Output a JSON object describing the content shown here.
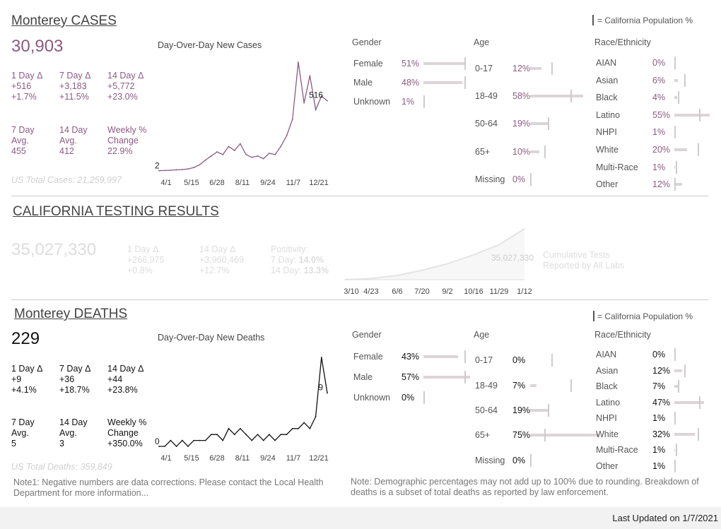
{
  "legend_text": "= California Population %",
  "cases": {
    "title": "Monterey CASES",
    "total": "30,903",
    "chart_title": "Day-Over-Day New Cases",
    "stats": [
      [
        "1 Day Δ",
        "+516",
        "+1.7%"
      ],
      [
        "7 Day Δ",
        "+3,183",
        "+11.5%"
      ],
      [
        "14 Day Δ",
        "+5,772",
        "+23.0%"
      ]
    ],
    "avgs": [
      [
        "7 Day",
        "Avg.",
        "455"
      ],
      [
        "14 Day",
        "Avg.",
        "412"
      ],
      [
        "Weekly %",
        "Change",
        "22.9%"
      ]
    ],
    "us_total": "US Total Cases: 21,259,997",
    "label_start": "2",
    "label_end": "516",
    "gender_header": "Gender",
    "age_header": "Age",
    "race_header": "Race/Ethnicity",
    "gender": [
      {
        "label": "Female",
        "pct": "51%",
        "v": 51,
        "ca": 50
      },
      {
        "label": "Male",
        "pct": "48%",
        "v": 48,
        "ca": 50
      },
      {
        "label": "Unknown",
        "pct": "1%",
        "v": 1,
        "ca": 0
      }
    ],
    "age": [
      {
        "label": "0-17",
        "pct": "12%",
        "v": 12,
        "ca": 23
      },
      {
        "label": "18-49",
        "pct": "58%",
        "v": 58,
        "ca": 44
      },
      {
        "label": "50-64",
        "pct": "19%",
        "v": 19,
        "ca": 19
      },
      {
        "label": "65+",
        "pct": "10%",
        "v": 10,
        "ca": 15
      },
      {
        "label": "Missing",
        "pct": "0%",
        "v": 0,
        "ca": 0
      }
    ],
    "race": [
      {
        "label": "AIAN",
        "pct": "0%",
        "v": 0,
        "ca": 0.5
      },
      {
        "label": "Asian",
        "pct": "6%",
        "v": 6,
        "ca": 15
      },
      {
        "label": "Black",
        "pct": "4%",
        "v": 4,
        "ca": 6
      },
      {
        "label": "Latino",
        "pct": "55%",
        "v": 55,
        "ca": 39
      },
      {
        "label": "NHPI",
        "pct": "1%",
        "v": 1,
        "ca": 0.3
      },
      {
        "label": "White",
        "pct": "20%",
        "v": 20,
        "ca": 37
      },
      {
        "label": "Multi-Race",
        "pct": "1%",
        "v": 1,
        "ca": 2
      },
      {
        "label": "Other",
        "pct": "12%",
        "v": 12,
        "ca": 0
      }
    ]
  },
  "testing": {
    "title": "CALIFORNIA TESTING RESULTS",
    "total": "35,027,330",
    "s1": [
      "1 Day Δ",
      "+266,975",
      "+0.8%"
    ],
    "s2": [
      "14 Day Δ",
      "+3,960,469",
      "+12.7%"
    ],
    "pos_title": "Positivity:",
    "pos7_label": "7 Day:",
    "pos7": "14.0%",
    "pos14_label": "14 Day:",
    "pos14": "13.3%",
    "chart_label": "35,027,330",
    "cumulative_label_1": "Cumulative Tests",
    "cumulative_label_2": "Reported by All Labs"
  },
  "deaths": {
    "title": "Monterey DEATHS",
    "total": "229",
    "chart_title": "Day-Over-Day New Deaths",
    "stats": [
      [
        "1 Day Δ",
        "+9",
        "+4.1%"
      ],
      [
        "7 Day Δ",
        "+36",
        "+18.7%"
      ],
      [
        "14 Day Δ",
        "+44",
        "+23.8%"
      ]
    ],
    "avgs": [
      [
        "7 Day",
        "Avg.",
        "5"
      ],
      [
        "14 Day",
        "Avg.",
        "3"
      ],
      [
        "Weekly %",
        "Change",
        "+350.0%"
      ]
    ],
    "us_total": "US Total Deaths: 359,849",
    "label_start": "0",
    "label_end": "9",
    "gender_header": "Gender",
    "age_header": "Age",
    "race_header": "Race/Ethnicity",
    "gender": [
      {
        "label": "Female",
        "pct": "43%",
        "v": 43,
        "ca": 50
      },
      {
        "label": "Male",
        "pct": "57%",
        "v": 57,
        "ca": 50
      },
      {
        "label": "Unknown",
        "pct": "0%",
        "v": 0,
        "ca": 0
      }
    ],
    "age": [
      {
        "label": "0-17",
        "pct": "0%",
        "v": 0,
        "ca": 23
      },
      {
        "label": "18-49",
        "pct": "7%",
        "v": 7,
        "ca": 44
      },
      {
        "label": "50-64",
        "pct": "19%",
        "v": 19,
        "ca": 19
      },
      {
        "label": "65+",
        "pct": "75%",
        "v": 75,
        "ca": 15
      },
      {
        "label": "Missing",
        "pct": "0%",
        "v": 0,
        "ca": 0
      }
    ],
    "race": [
      {
        "label": "AIAN",
        "pct": "0%",
        "v": 0,
        "ca": 0.5
      },
      {
        "label": "Asian",
        "pct": "12%",
        "v": 12,
        "ca": 15
      },
      {
        "label": "Black",
        "pct": "7%",
        "v": 7,
        "ca": 6
      },
      {
        "label": "Latino",
        "pct": "47%",
        "v": 47,
        "ca": 39
      },
      {
        "label": "NHPI",
        "pct": "1%",
        "v": 1,
        "ca": 0.3
      },
      {
        "label": "White",
        "pct": "32%",
        "v": 32,
        "ca": 37
      },
      {
        "label": "Multi-Race",
        "pct": "1%",
        "v": 1,
        "ca": 2
      },
      {
        "label": "Other",
        "pct": "1%",
        "v": 1,
        "ca": 0
      }
    ]
  },
  "note1": "Note1: Negative numbers are data corrections. Please contact the Local Health Department for more information...",
  "note2": "Note: Demographic percentages may not add up to 100% due to rounding. Breakdown of deaths is a subset of total deaths as reported by law enforcement.",
  "last_updated": "Last Updated on 1/7/2021",
  "colors": {
    "cases": "#8b5a82",
    "deaths": "#111111",
    "bar": "#dcd4d8",
    "light": "#e6e6e6"
  },
  "chart_data": [
    {
      "type": "line",
      "title": "Day-Over-Day New Cases",
      "x_ticks": [
        "4/1",
        "5/15",
        "6/28",
        "8/11",
        "9/24",
        "11/7",
        "12/21"
      ],
      "x": [
        "3/18",
        "4/1",
        "4/15",
        "5/1",
        "5/15",
        "6/1",
        "6/15",
        "6/28",
        "7/10",
        "7/20",
        "7/28",
        "8/5",
        "8/11",
        "8/20",
        "8/30",
        "9/10",
        "9/24",
        "10/5",
        "10/20",
        "11/1",
        "11/7",
        "11/20",
        "11/28",
        "12/5",
        "12/10",
        "12/15",
        "12/21",
        "12/28",
        "1/3",
        "1/7"
      ],
      "values": [
        2,
        3,
        5,
        8,
        10,
        15,
        25,
        45,
        80,
        110,
        140,
        120,
        180,
        150,
        200,
        120,
        100,
        110,
        90,
        130,
        120,
        180,
        260,
        380,
        800,
        500,
        700,
        450,
        550,
        516
      ],
      "labels": {
        "start": "2",
        "end": "516"
      }
    },
    {
      "type": "line",
      "title": "Day-Over-Day New Deaths",
      "x_ticks": [
        "4/1",
        "5/15",
        "6/28",
        "8/11",
        "9/24",
        "11/7",
        "12/21"
      ],
      "x": [
        "3/18",
        "4/1",
        "4/15",
        "5/1",
        "5/15",
        "6/1",
        "6/15",
        "6/28",
        "7/10",
        "7/20",
        "7/28",
        "8/5",
        "8/11",
        "8/20",
        "8/30",
        "9/10",
        "9/24",
        "10/5",
        "10/20",
        "11/1",
        "11/7",
        "11/20",
        "11/28",
        "12/5",
        "12/10",
        "12/15",
        "12/21",
        "12/28",
        "1/3",
        "1/7"
      ],
      "values": [
        0,
        0,
        1,
        0,
        1,
        0,
        1,
        1,
        1,
        2,
        2,
        1,
        3,
        2,
        3,
        2,
        1,
        2,
        1,
        2,
        1,
        2,
        2,
        3,
        3,
        4,
        3,
        5,
        15,
        9
      ],
      "labels": {
        "start": "0",
        "end": "9"
      }
    },
    {
      "type": "area",
      "title": "Cumulative Tests Reported by All Labs",
      "x_ticks": [
        "3/10",
        "4/23",
        "6/6",
        "7/20",
        "9/2",
        "10/16",
        "11/29",
        "1/12"
      ],
      "x": [
        "3/10",
        "4/23",
        "6/6",
        "7/20",
        "9/2",
        "10/16",
        "11/29",
        "1/7"
      ],
      "values": [
        0,
        800000,
        2800000,
        6500000,
        11000000,
        17000000,
        24000000,
        35027330
      ],
      "ylim": [
        0,
        36000000
      ]
    }
  ]
}
